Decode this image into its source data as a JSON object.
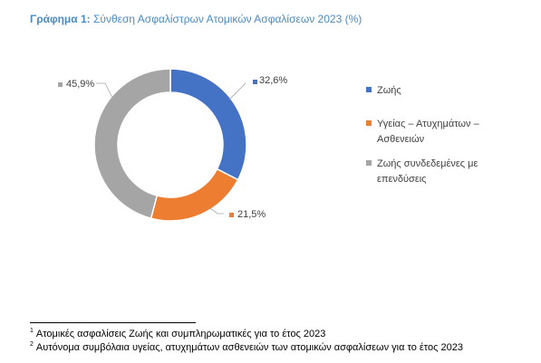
{
  "title": {
    "prefix": "Γράφημα 1:",
    "text": "Σύνθεση Ασφαλίστρων Ατομικών Ασφαλίσεων 2023 (%)"
  },
  "chart_data": {
    "type": "pie",
    "donut": true,
    "categories": [
      "Ζωής",
      "Υγείας – Ατυχημάτων – Ασθενειών",
      "Ζωής συνδεδεμένες με επενδύσεις"
    ],
    "values": [
      32.6,
      21.5,
      45.9
    ],
    "data_labels": [
      "32,6%",
      "21,5%",
      "45,9%"
    ],
    "colors": [
      "#4472c4",
      "#ed7d31",
      "#a5a5a5"
    ],
    "legend": "right"
  },
  "legend": {
    "items": [
      {
        "label": "Ζωής",
        "color": "#4472c4"
      },
      {
        "label": "Υγείας – Ατυχημάτων – Ασθενειών",
        "color": "#ed7d31"
      },
      {
        "label": "Ζωής συνδεδεμένες με επενδύσεις",
        "color": "#a5a5a5"
      }
    ]
  },
  "footnotes": [
    {
      "mark": "1",
      "text": "Ατομικές ασφαλίσεις Ζωής και συμπληρωματικές για το έτος 2023"
    },
    {
      "mark": "2",
      "text": "Αυτόνομα συμβόλαια υγείας, ατυχημάτων ασθενειών των ατομικών ασφαλίσεων για το έτος 2023"
    }
  ]
}
